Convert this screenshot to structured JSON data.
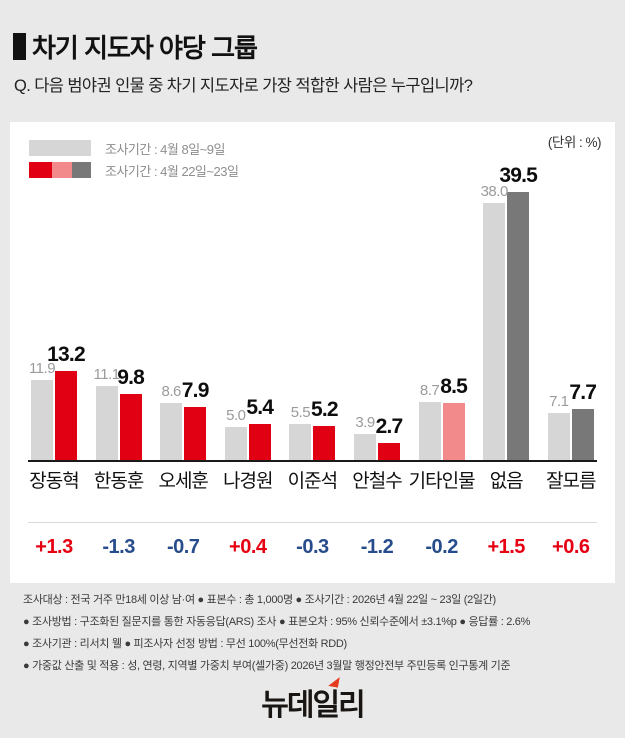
{
  "header": {
    "title": "차기 지도자 야당 그룹",
    "question": "Q. 다음 범야권 인물 중 차기 지도자로 가장 적합한 사람은 누구입니까?"
  },
  "chart_data": {
    "type": "bar",
    "unit_label": "(단위 : %)",
    "categories": [
      "장동혁",
      "한동훈",
      "오세훈",
      "나경원",
      "이준석",
      "안철수",
      "기타인물",
      "없음",
      "잘모름"
    ],
    "series": [
      {
        "name": "조사기간 : 4월 8일~9일",
        "values": [
          11.9,
          11.1,
          8.6,
          5.0,
          5.5,
          3.9,
          8.7,
          38.0,
          7.1
        ],
        "color": "#d6d6d6"
      },
      {
        "name": "조사기간 : 4월 22일~23일",
        "values": [
          13.2,
          9.8,
          7.9,
          5.4,
          5.2,
          2.7,
          8.5,
          39.5,
          7.7
        ],
        "bar_colors": [
          "#e10013",
          "#e10013",
          "#e10013",
          "#e10013",
          "#e10013",
          "#e10013",
          "#f2898b",
          "#787878",
          "#787878"
        ]
      }
    ],
    "changes": [
      "+1.3",
      "-1.3",
      "-0.7",
      "+0.4",
      "-0.3",
      "-1.2",
      "-0.2",
      "+1.5",
      "+0.6"
    ],
    "change_colors": {
      "positive": "#e60012",
      "negative": "#274c8b"
    },
    "ylim": [
      0,
      42
    ],
    "legend_position": "top-left",
    "grid": false
  },
  "footer": {
    "lines": [
      "조사대상 : 전국 거주 만18세 이상 남·여 ● 표본수 : 총 1,000명 ● 조사기간 : 2026년 4월 22일 ~ 23일 (2일간)",
      "● 조사방법 : 구조화된 질문지를 통한 자동응답(ARS) 조사 ● 표본오차 : 95% 신뢰수준에서 ±3.1%p ● 응답률 : 2.6%",
      "● 조사기관 : 리서치 웰 ● 피조사자 선정 방법 : 무선 100%(무선전화 RDD)",
      "● 가중값 산출 및 적용 : 성, 연령, 지역별 가중치 부여(셀가중) 2026년 3월말 행정안전부 주민등록 인구통계 기준"
    ]
  },
  "logo": {
    "text": "뉴데일리"
  }
}
